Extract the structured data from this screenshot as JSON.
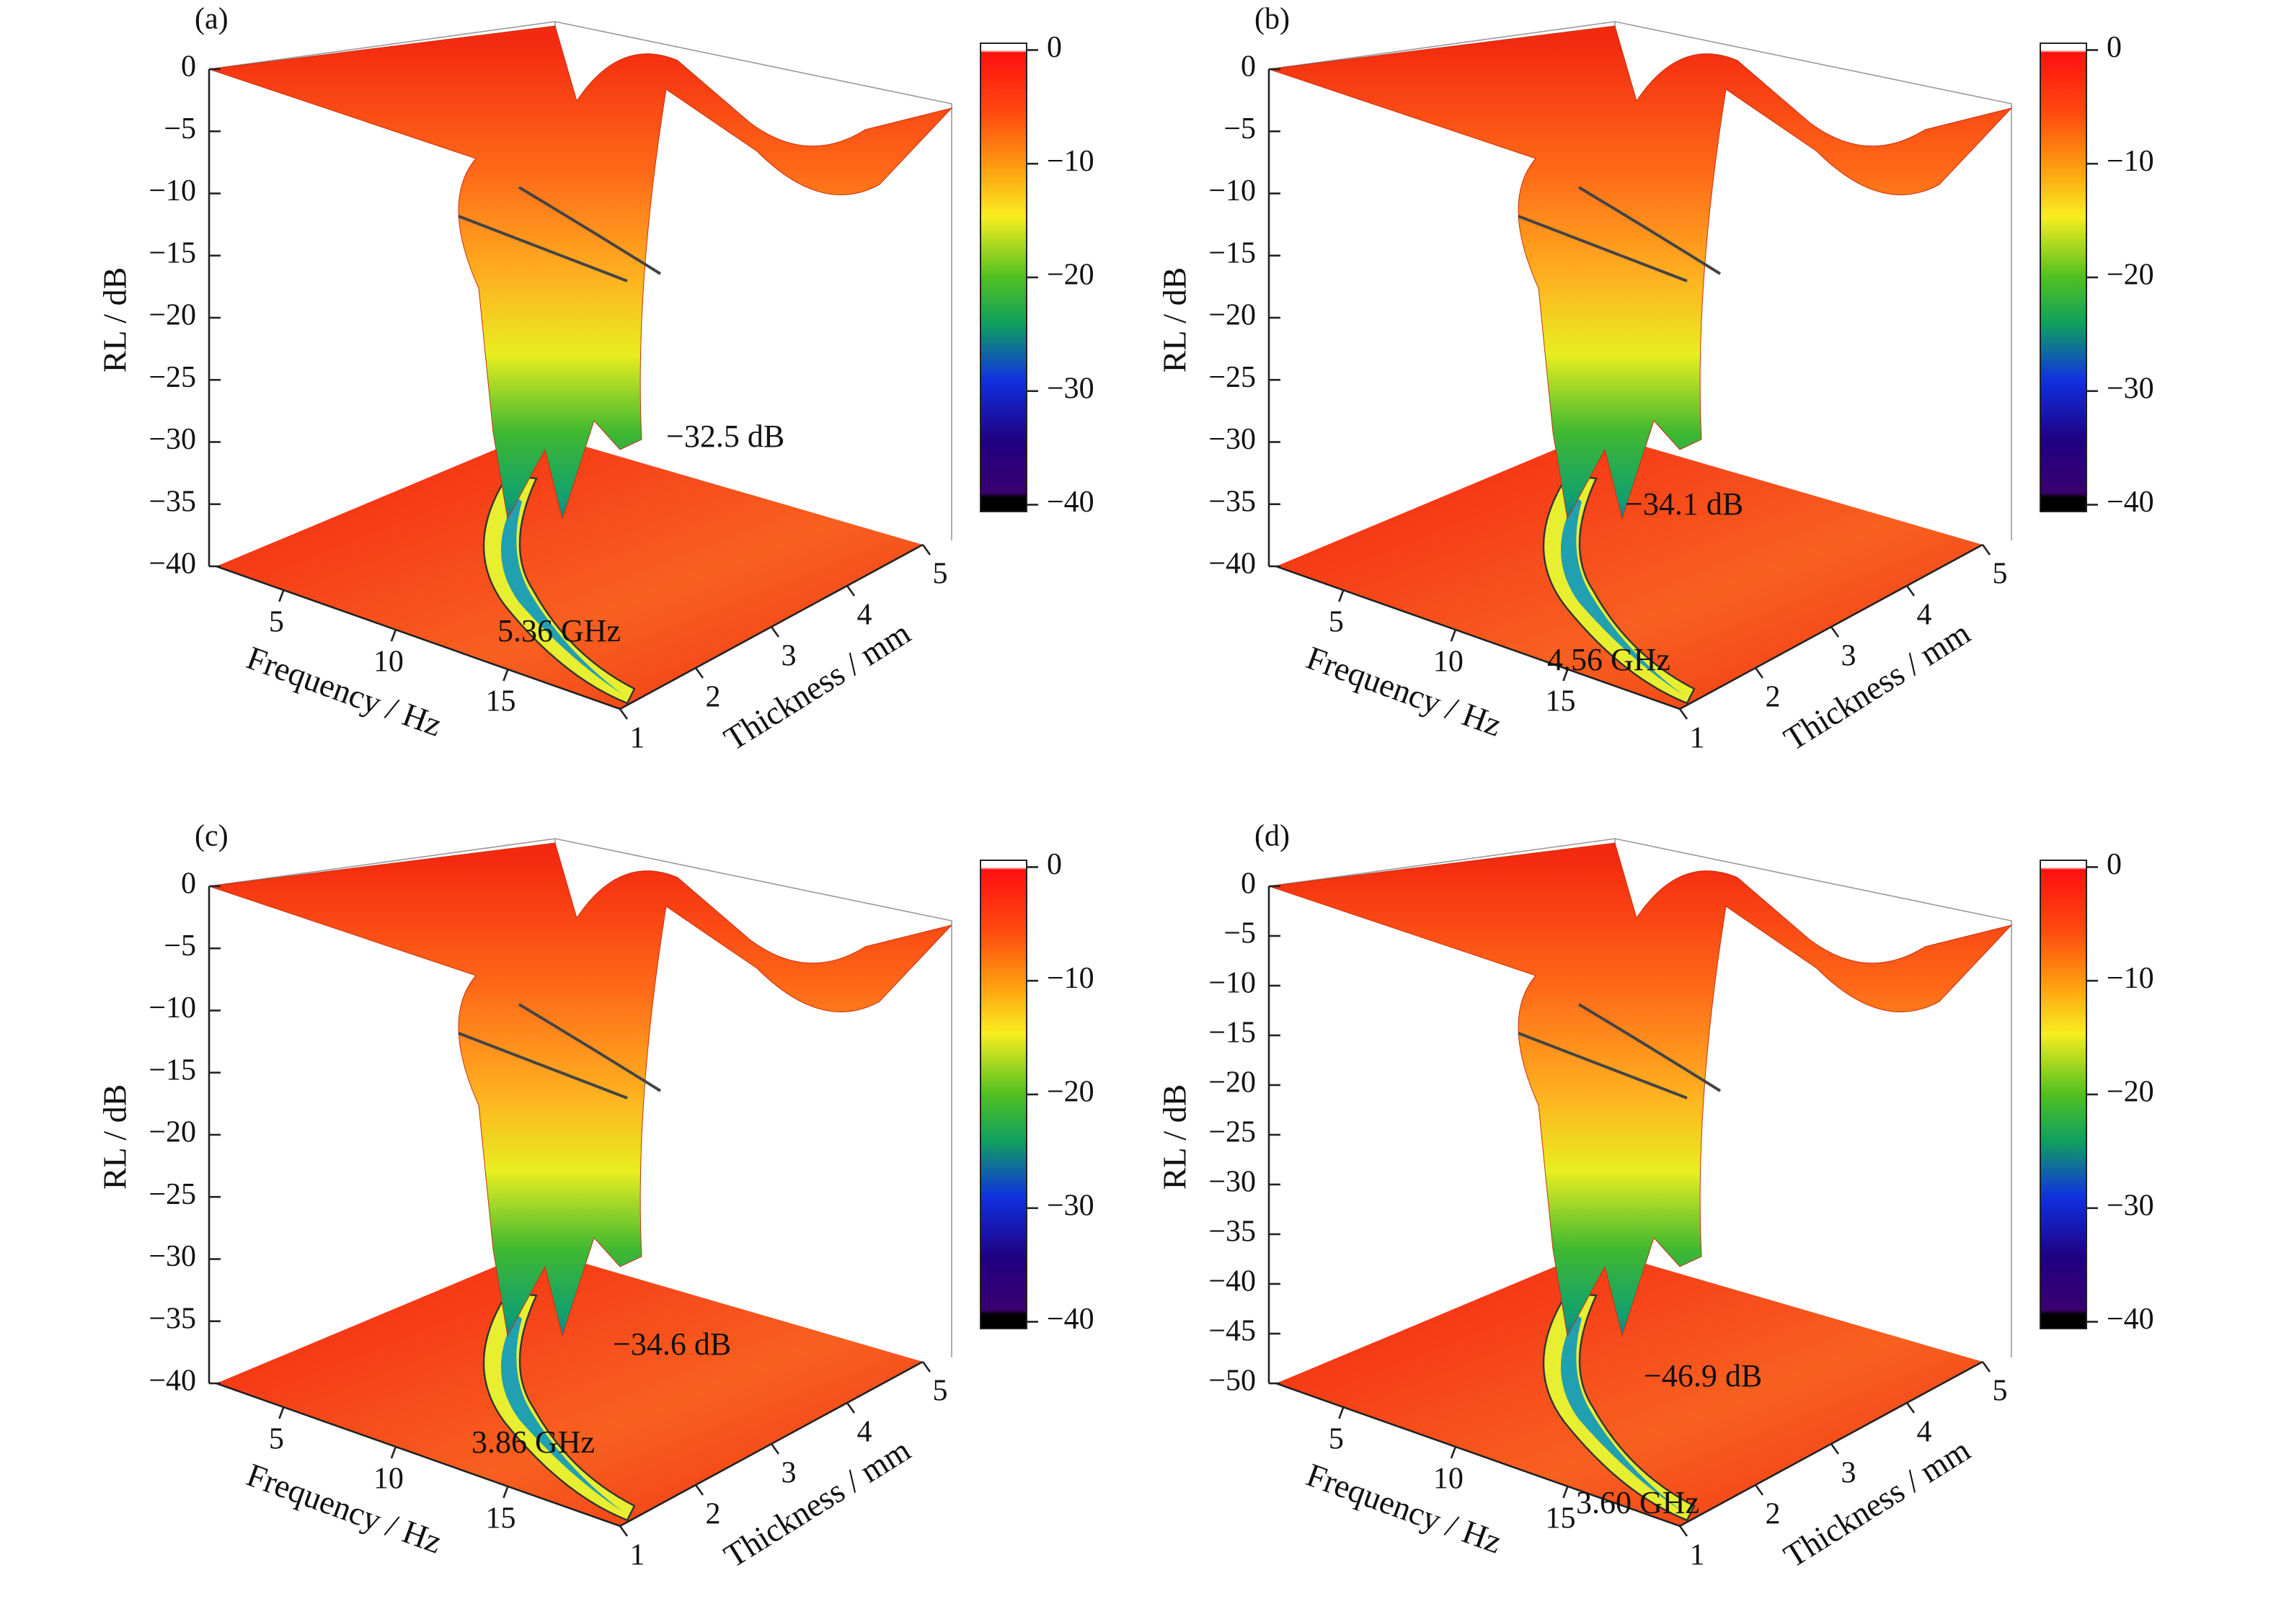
{
  "chart_data": [
    {
      "type": "surface3d",
      "panel": "(a)",
      "zlabel": "RL / dB",
      "xlabel": "Frequency / Hz",
      "ylabel": "Thickness / mm",
      "zlim": [
        -40,
        0
      ],
      "zticks": [
        0,
        {
          "value": -5,
          "label": "−5"
        },
        {
          "value": -10,
          "label": "−10"
        },
        {
          "value": -15,
          "label": "−15"
        },
        {
          "value": -20,
          "label": "−20"
        },
        {
          "value": -25,
          "label": "−25"
        },
        {
          "value": -30,
          "label": "−30"
        },
        {
          "value": -35,
          "label": "−35"
        },
        {
          "value": -40,
          "label": "−40"
        }
      ],
      "xlim": [
        2,
        20
      ],
      "xticks": [
        5,
        10,
        15
      ],
      "ylim": [
        1,
        5
      ],
      "yticks": [
        1,
        2,
        3,
        4,
        5
      ],
      "clim": [
        -40.6,
        0.6
      ],
      "cticks": [
        0,
        {
          "value": -10,
          "label": "−10"
        },
        {
          "value": -20,
          "label": "−20"
        },
        {
          "value": -30,
          "label": "−30"
        },
        {
          "value": -40,
          "label": "−40"
        }
      ],
      "annotations": [
        "−32.5 dB",
        "5.36 GHz"
      ]
    },
    {
      "type": "surface3d",
      "panel": "(b)",
      "zlabel": "RL / dB",
      "xlabel": "Frequency / Hz",
      "ylabel": "Thickness / mm",
      "zlim": [
        -40,
        0
      ],
      "zticks": [
        0,
        {
          "value": -5,
          "label": "−5"
        },
        {
          "value": -10,
          "label": "−10"
        },
        {
          "value": -15,
          "label": "−15"
        },
        {
          "value": -20,
          "label": "−20"
        },
        {
          "value": -25,
          "label": "−25"
        },
        {
          "value": -30,
          "label": "−30"
        },
        {
          "value": -35,
          "label": "−35"
        },
        {
          "value": -40,
          "label": "−40"
        }
      ],
      "xlim": [
        2,
        20
      ],
      "xticks": [
        5,
        10,
        15
      ],
      "ylim": [
        1,
        5
      ],
      "yticks": [
        1,
        2,
        3,
        4,
        5
      ],
      "clim": [
        -40.6,
        0.6
      ],
      "cticks": [
        0,
        {
          "value": -10,
          "label": "−10"
        },
        {
          "value": -20,
          "label": "−20"
        },
        {
          "value": -30,
          "label": "−30"
        },
        {
          "value": -40,
          "label": "−40"
        }
      ],
      "annotations": [
        "−34.1 dB",
        "4.56 GHz"
      ]
    },
    {
      "type": "surface3d",
      "panel": "(c)",
      "zlabel": "RL / dB",
      "xlabel": "Frequency / Hz",
      "ylabel": "Thickness / mm",
      "zlim": [
        -40,
        0
      ],
      "zticks": [
        0,
        {
          "value": -5,
          "label": "−5"
        },
        {
          "value": -10,
          "label": "−10"
        },
        {
          "value": -15,
          "label": "−15"
        },
        {
          "value": -20,
          "label": "−20"
        },
        {
          "value": -25,
          "label": "−25"
        },
        {
          "value": -30,
          "label": "−30"
        },
        {
          "value": -35,
          "label": "−35"
        },
        {
          "value": -40,
          "label": "−40"
        }
      ],
      "xlim": [
        2,
        20
      ],
      "xticks": [
        5,
        10,
        15
      ],
      "ylim": [
        1,
        5
      ],
      "yticks": [
        1,
        2,
        3,
        4,
        5
      ],
      "clim": [
        -40.6,
        0.6
      ],
      "cticks": [
        0,
        {
          "value": -10,
          "label": "−10"
        },
        {
          "value": -20,
          "label": "−20"
        },
        {
          "value": -30,
          "label": "−30"
        },
        {
          "value": -40,
          "label": "−40"
        }
      ],
      "annotations": [
        "−34.6 dB",
        "3.86 GHz"
      ]
    },
    {
      "type": "surface3d",
      "panel": "(d)",
      "zlabel": "RL / dB",
      "xlabel": "Frequency / Hz",
      "ylabel": "Thickness / mm",
      "zlim": [
        -50,
        0
      ],
      "zticks": [
        0,
        {
          "value": -5,
          "label": "−5"
        },
        {
          "value": -10,
          "label": "−10"
        },
        {
          "value": -15,
          "label": "−15"
        },
        {
          "value": -20,
          "label": "−20"
        },
        {
          "value": -25,
          "label": "−25"
        },
        {
          "value": -30,
          "label": "−30"
        },
        {
          "value": -35,
          "label": "−35"
        },
        {
          "value": -40,
          "label": "−40"
        },
        {
          "value": -45,
          "label": "−45"
        },
        {
          "value": -50,
          "label": "−50"
        }
      ],
      "xlim": [
        2,
        20
      ],
      "xticks": [
        5,
        10,
        15
      ],
      "ylim": [
        1,
        5
      ],
      "yticks": [
        1,
        2,
        3,
        4,
        5
      ],
      "clim": [
        -40.6,
        0.6
      ],
      "cticks": [
        0,
        {
          "value": -10,
          "label": "−10"
        },
        {
          "value": -20,
          "label": "−20"
        },
        {
          "value": -30,
          "label": "−30"
        },
        {
          "value": -40,
          "label": "−40"
        }
      ],
      "annotations": [
        "−46.9 dB",
        "3.60 GHz"
      ]
    }
  ]
}
